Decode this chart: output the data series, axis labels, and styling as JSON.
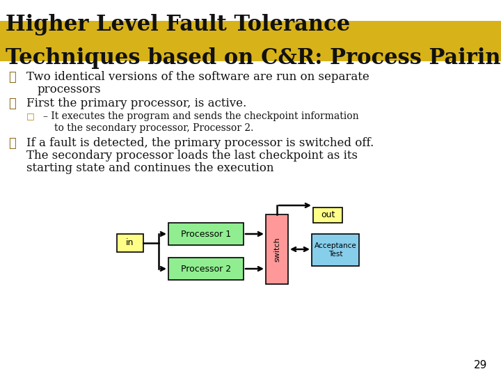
{
  "title_line1": "Higher Level Fault Tolerance",
  "title_line2": "Techniques based on C&R: Process Pairing",
  "title_color": "#111111",
  "title_bg_color": "#D4AA00",
  "bullet_color": "#8B6914",
  "sub_bullet_color": "#B8860B",
  "page_number": "29",
  "bg_color": "#FFFFFF",
  "proc1_color": "#90EE90",
  "proc2_color": "#90EE90",
  "switch_color": "#FF9999",
  "accept_color": "#87CEEB",
  "in_color": "#FFFF88",
  "out_color": "#FFFF88"
}
